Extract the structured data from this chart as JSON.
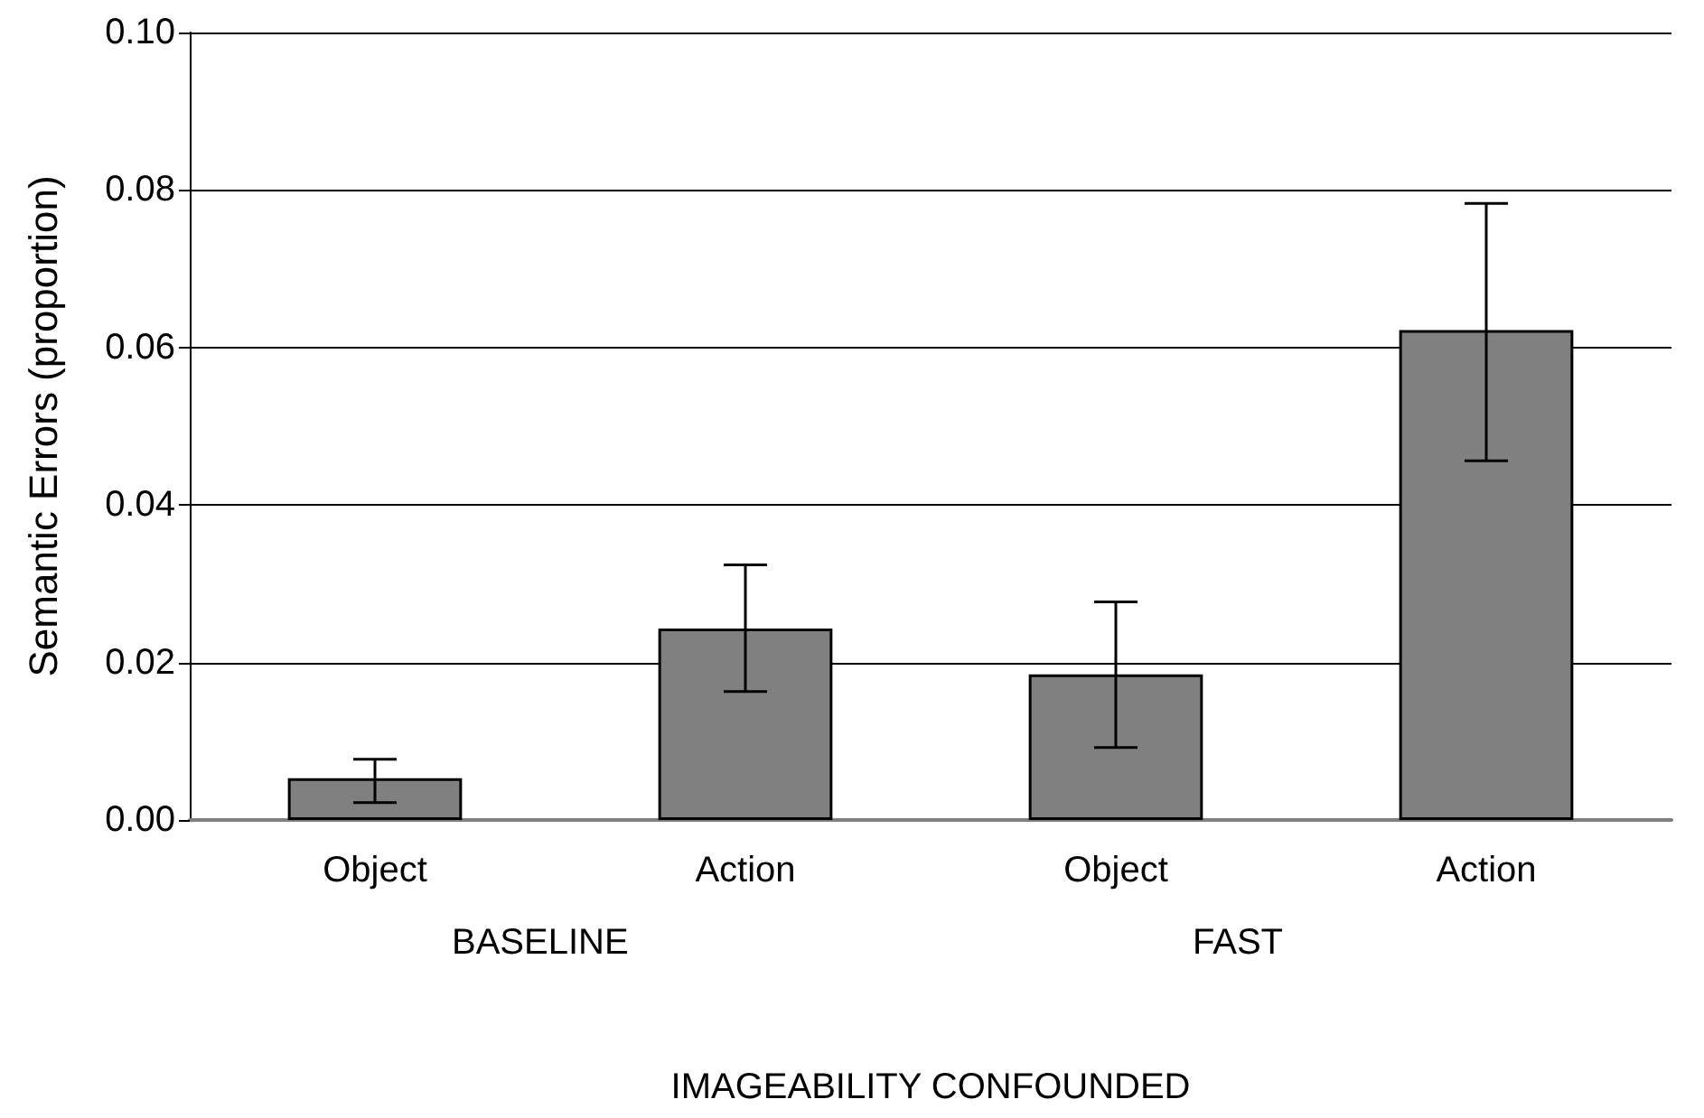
{
  "chart_data": {
    "type": "bar",
    "ylabel": "Semantic Errors (proportion)",
    "xlabel": "IMAGEABILITY CONFOUNDED",
    "categories": [
      "Object",
      "Action",
      "Object",
      "Action"
    ],
    "values": [
      0.0053,
      0.0243,
      0.0185,
      0.0622
    ],
    "errors": [
      [
        0.0022,
        0.0077
      ],
      [
        0.0163,
        0.0324
      ],
      [
        0.0092,
        0.0277
      ],
      [
        0.0456,
        0.0783
      ]
    ],
    "color": "#808080",
    "annotations": [
      "BASELINE",
      "FAST"
    ],
    "ylim": [
      0,
      0.1
    ],
    "yticks": [
      {
        "value": 0,
        "label": "0.00"
      },
      {
        "value": 0.02,
        "label": "0.02"
      },
      {
        "value": 0.04,
        "label": "0.04"
      },
      {
        "value": 0.06,
        "label": "0.06"
      },
      {
        "value": 0.08,
        "label": "0.08"
      },
      {
        "value": 0.1,
        "label": "0.10"
      }
    ],
    "grid": "y"
  }
}
